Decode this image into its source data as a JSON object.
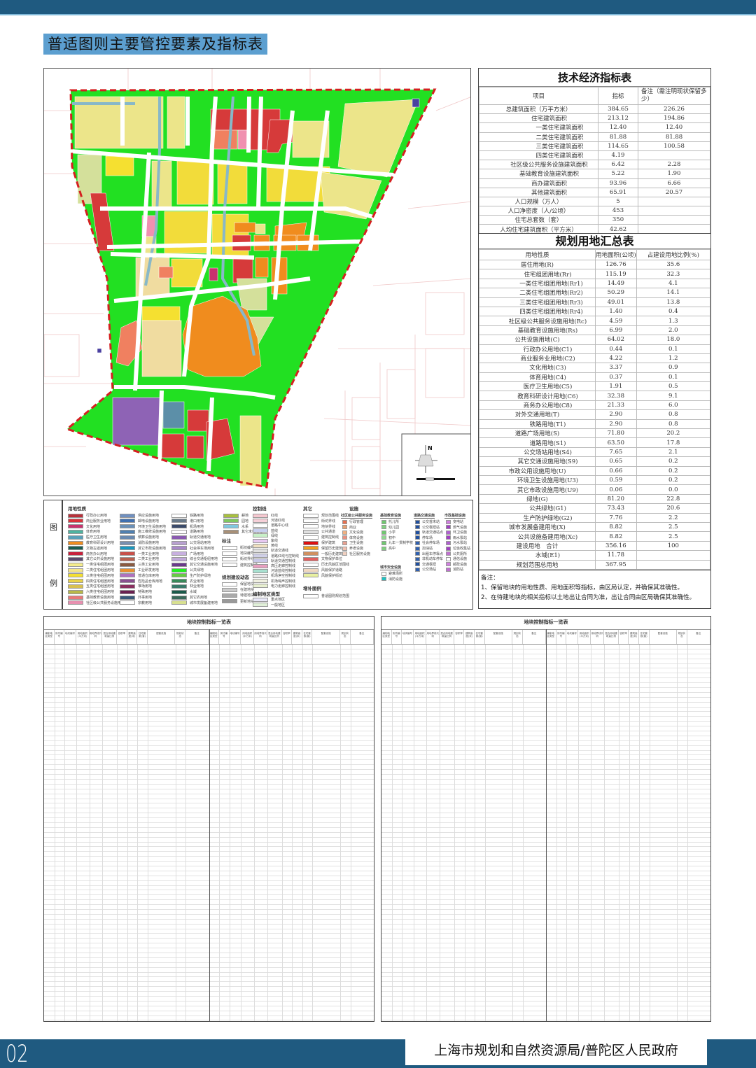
{
  "page_title": "普适图则主要管控要素及指标表",
  "page_number": "02",
  "organization": "上海市规划和自然资源局/普陀区人民政府",
  "tech_table": {
    "title": "技术经济指标表",
    "headers": [
      "项目",
      "指标",
      "备注（需注明现状保留多少）"
    ],
    "rows": [
      {
        "item": "总建筑面积（万平方米）",
        "value": "384.65",
        "note": "226.26",
        "level": 0
      },
      {
        "item": "住宅建筑面积",
        "value": "213.12",
        "note": "194.86",
        "level": 1
      },
      {
        "item": "一类住宅建筑面积",
        "value": "12.40",
        "note": "12.40",
        "level": 2
      },
      {
        "item": "二类住宅建筑面积",
        "value": "81.88",
        "note": "81.88",
        "level": 2
      },
      {
        "item": "三类住宅建筑面积",
        "value": "114.65",
        "note": "100.58",
        "level": 2
      },
      {
        "item": "四类住宅建筑面积",
        "value": "4.19",
        "note": "",
        "level": 2
      },
      {
        "item": "社区级公共服务设施建筑面积",
        "value": "6.42",
        "note": "2.28",
        "level": 1
      },
      {
        "item": "基础教育设施建筑面积",
        "value": "5.22",
        "note": "1.90",
        "level": 1
      },
      {
        "item": "商办建筑面积",
        "value": "93.96",
        "note": "6.66",
        "level": 1
      },
      {
        "item": "其他建筑面积",
        "value": "65.91",
        "note": "20.57",
        "level": 1
      },
      {
        "item": "人口规模（万人）",
        "value": "5",
        "note": "",
        "level": 0
      },
      {
        "item": "人口净密度（人/公顷）",
        "value": "453",
        "note": "",
        "level": 0
      },
      {
        "item": "住宅总套数（套）",
        "value": "350",
        "note": "",
        "level": 0
      },
      {
        "item": "人均住宅建筑面积（平方米）",
        "value": "42.62",
        "note": "",
        "level": 0
      }
    ]
  },
  "land_table": {
    "title": "规划用地汇总表",
    "headers": [
      "用地性质",
      "用地面积(公顷)",
      "占建设用地比例(%)"
    ],
    "rows": [
      {
        "item": "居住用地(R)",
        "area": "126.76",
        "ratio": "35.6",
        "level": 0
      },
      {
        "item": "住宅组团用地(Rr)",
        "area": "115.19",
        "ratio": "32.3",
        "level": 1
      },
      {
        "item": "一类住宅组团用地(Rr1)",
        "area": "14.49",
        "ratio": "4.1",
        "level": 2
      },
      {
        "item": "二类住宅组团用地(Rr2)",
        "area": "50.29",
        "ratio": "14.1",
        "level": 2
      },
      {
        "item": "三类住宅组团用地(Rr3)",
        "area": "49.01",
        "ratio": "13.8",
        "level": 2
      },
      {
        "item": "四类住宅组团用地(Rr4)",
        "area": "1.40",
        "ratio": "0.4",
        "level": 2
      },
      {
        "item": "社区级公共服务设施用地(Rc)",
        "area": "4.59",
        "ratio": "1.3",
        "level": 1
      },
      {
        "item": "基础教育设施用地(Rs)",
        "area": "6.99",
        "ratio": "2.0",
        "level": 1
      },
      {
        "item": "公共设施用地(C)",
        "area": "64.02",
        "ratio": "18.0",
        "level": 0
      },
      {
        "item": "行政办公用地(C1)",
        "area": "0.44",
        "ratio": "0.1",
        "level": 1
      },
      {
        "item": "商业服务业用地(C2)",
        "area": "4.22",
        "ratio": "1.2",
        "level": 1
      },
      {
        "item": "文化用地(C3)",
        "area": "3.37",
        "ratio": "0.9",
        "level": 1
      },
      {
        "item": "体育用地(C4)",
        "area": "0.37",
        "ratio": "0.1",
        "level": 1
      },
      {
        "item": "医疗卫生用地(C5)",
        "area": "1.91",
        "ratio": "0.5",
        "level": 1
      },
      {
        "item": "教育科研设计用地(C6)",
        "area": "32.38",
        "ratio": "9.1",
        "level": 1
      },
      {
        "item": "商务办公用地(C8)",
        "area": "21.33",
        "ratio": "6.0",
        "level": 1
      },
      {
        "item": "对外交通用地(T)",
        "area": "2.90",
        "ratio": "0.8",
        "level": 0
      },
      {
        "item": "铁路用地(T1)",
        "area": "2.90",
        "ratio": "0.8",
        "level": 1
      },
      {
        "item": "道路广场用地(S)",
        "area": "71.80",
        "ratio": "20.2",
        "level": 0
      },
      {
        "item": "道路用地(S1)",
        "area": "63.50",
        "ratio": "17.8",
        "level": 1
      },
      {
        "item": "公交场站用地(S4)",
        "area": "7.65",
        "ratio": "2.1",
        "level": 1
      },
      {
        "item": "其它交通设施用地(S9)",
        "area": "0.65",
        "ratio": "0.2",
        "level": 1
      },
      {
        "item": "市政公用设施用地(U)",
        "area": "0.66",
        "ratio": "0.2",
        "level": 0
      },
      {
        "item": "环境卫生设施用地(U3)",
        "area": "0.59",
        "ratio": "0.2",
        "level": 1
      },
      {
        "item": "其它市政设施用地(U9)",
        "area": "0.06",
        "ratio": "0.0",
        "level": 1
      },
      {
        "item": "绿地(G)",
        "area": "81.20",
        "ratio": "22.8",
        "level": 0
      },
      {
        "item": "公共绿地(G1)",
        "area": "73.43",
        "ratio": "20.6",
        "level": 1
      },
      {
        "item": "生产防护绿地(G2)",
        "area": "7.76",
        "ratio": "2.2",
        "level": 1
      },
      {
        "item": "城市发展备建用地(X)",
        "area": "8.82",
        "ratio": "2.5",
        "level": 0
      },
      {
        "item": "公共设施备建用地(Xc)",
        "area": "8.82",
        "ratio": "2.5",
        "level": 1
      },
      {
        "item": "建设用地　合计",
        "area": "356.16",
        "ratio": "100",
        "level": 0
      },
      {
        "item": "水域(E1)",
        "area": "11.78",
        "ratio": "",
        "level": 1
      },
      {
        "item": "规划范围总用地",
        "area": "367.95",
        "ratio": "",
        "level": 0
      }
    ]
  },
  "notes": {
    "heading": "备注：",
    "items": [
      "1、保留地块的用地性质、用地面积等指标，由区局认定，并确保其准确性。",
      "2、在待建地块的相关指标以土地出让合同为准，出让合同由区局确保其准确性。"
    ]
  },
  "legend": {
    "side_label": [
      "图",
      "例"
    ],
    "landuse_heading": "用地性质",
    "landuse_columns": [
      [
        [
          "行政办公用地",
          "#b8313a"
        ],
        [
          "商业服务业用地",
          "#d9323a"
        ],
        [
          "文化用地",
          "#c8326e"
        ],
        [
          "体育用地",
          "#4fb3a0"
        ],
        [
          "医疗卫生用地",
          "#5aa0b8"
        ],
        [
          "教育科研设计用地",
          "#f08c1e"
        ],
        [
          "文物古迹用地",
          "#1a5c4f"
        ],
        [
          "商务办公用地",
          "#c8203c"
        ],
        [
          "其它公共设施用地",
          "#5a4a6e"
        ],
        [
          "一类住宅组团用地",
          "#f5ec8c"
        ],
        [
          "二类住宅组团用地",
          "#f5e68a"
        ],
        [
          "三类住宅组团用地",
          "#f5e030"
        ],
        [
          "四类住宅组团用地",
          "#e8d24a"
        ],
        [
          "五类住宅组团用地",
          "#d8c050"
        ],
        [
          "六类住宅组团用地",
          "#b8b848"
        ],
        [
          "基础教育设施用地",
          "#e87878"
        ],
        [
          "社区级公共服务设施用地",
          "#e890b0"
        ]
      ],
      [
        [
          "供应设施用地",
          "#7090c0"
        ],
        [
          "邮电设施用地",
          "#4070b0"
        ],
        [
          "环境卫生设施用地",
          "#6a90b8"
        ],
        [
          "施工维修设施用地",
          "#5080b0"
        ],
        [
          "殡葬设施用地",
          "#6a8ab0"
        ],
        [
          "消防设施用地",
          "#7890b0"
        ],
        [
          "其它市政设施用地",
          "#1a98c0"
        ],
        [
          "一类工业用地",
          "#c8504a"
        ],
        [
          "二类工业用地",
          "#b86050"
        ],
        [
          "三类工业用地",
          "#8a5a40"
        ],
        [
          "工业研发用地",
          "#e89030"
        ],
        [
          "普通仓库用地",
          "#b070c0"
        ],
        [
          "危险品仓库用地",
          "#8a5090"
        ],
        [
          "堆场用地",
          "#8a3060"
        ],
        [
          "特殊用地",
          "#6a2050"
        ],
        [
          "外事用地",
          "#3a5a7a"
        ],
        [
          "宗教用地",
          "#ffffff"
        ]
      ],
      [
        [
          "铁路用地",
          "#ffffff"
        ],
        [
          "港口用地",
          "#6a7a8a"
        ],
        [
          "机场用地",
          "#3a4a6a"
        ],
        [
          "道路用地",
          "#ffffff"
        ],
        [
          "轨道交通用地",
          "#8a5ab0"
        ],
        [
          "公交场站用地",
          "#b8a0d0"
        ],
        [
          "社会停车场用地",
          "#a888c8"
        ],
        [
          "广场用地",
          "#c8b0e0"
        ],
        [
          "综合交通枢纽用地",
          "#c0a8d8"
        ],
        [
          "其它交通设施用地",
          "#6a3a8a"
        ],
        [
          "公共绿地",
          "#22ee22"
        ],
        [
          "生产防护绿地",
          "#66cc44"
        ],
        [
          "农业用地",
          "#3a8a5a"
        ],
        [
          "林业用地",
          "#3a7a6a"
        ],
        [
          "水域",
          "#1a5a4a"
        ],
        [
          "其它农用地",
          "#3a6a5a"
        ],
        [
          "城市发展备建用地",
          "#d8e090"
        ]
      ],
      [
        [
          "耕地",
          "#a8c040"
        ],
        [
          "园地",
          "#80c860"
        ],
        [
          "水系",
          "#80c8e0"
        ],
        [
          "其它未利用地",
          "#a89078"
        ]
      ]
    ],
    "annotation_heading": "标注",
    "annotation_items": [
      "街坊编号",
      "地块编号",
      "街坊界线",
      "建筑控制线"
    ],
    "dynamic_heading": "规划建设动态",
    "dynamic_items": [
      "保留地块",
      "在建地块",
      "待建地块",
      "更新地块"
    ],
    "control_heading": "控制线",
    "control_items": [
      [
        "红线",
        "#f6c8d0"
      ],
      [
        "河道红线",
        "#f6d0d8"
      ],
      [
        "道路中心线",
        "#ffffff"
      ],
      [
        "蓝线",
        "#c8d0f0"
      ],
      [
        "绿线",
        "#c8f0c8"
      ],
      [
        "紫线",
        "#e8c8f0"
      ],
      [
        "黄线",
        "#f0e0c0"
      ],
      [
        "轨道交通线",
        "#e0e0e0"
      ],
      [
        "道路红线与控制线",
        "#d0d0e8"
      ],
      [
        "轨道交通控制线",
        "#c8c8e8"
      ],
      [
        "高压走廊控制线",
        "#e8a0c0"
      ],
      [
        "河道蓝线控制线",
        "#a8e0d0"
      ],
      [
        "机场净空控制线",
        "#e8e8e8"
      ],
      [
        "机场噪声控制线",
        "#f0f0e0"
      ],
      [
        "电力走廊控制线",
        "#e8f0d0"
      ]
    ],
    "area_type_heading": "编制地区类型",
    "area_type_items": [
      [
        "重点地区",
        "#e8e8f8"
      ],
      [
        "一般地区",
        "#e0f0d8"
      ]
    ],
    "other_heading": "其它",
    "other_items": [
      [
        "规划范围线",
        "#ffffff"
      ],
      [
        "街坊界线",
        "#ffffff"
      ],
      [
        "地块界线",
        "#ffffff"
      ],
      [
        "公共通道",
        "#e0e0e0"
      ],
      [
        "建筑控制线",
        "#ffffff"
      ],
      [
        "保护建筑",
        "#dd1111"
      ],
      [
        "保留历史建筑",
        "#f0a020"
      ],
      [
        "一般历史建筑",
        "#d09060"
      ],
      [
        "文物保护单位",
        "#e06060"
      ],
      [
        "历史风貌区范围线",
        "#ffffff"
      ],
      [
        "风貌保护道路",
        "#f0d8c0"
      ],
      [
        "风貌保护街坊",
        "#e8f0a0"
      ]
    ],
    "supplement_heading": "增补图例",
    "supplement_items": [
      [
        "普适图则规划范围",
        "#ffffff"
      ]
    ],
    "facility_heading": "设施",
    "facility_groups": [
      {
        "title": "社区级公共服务设施",
        "items": [
          [
            "行政管理",
            "#e87050"
          ],
          [
            "商业",
            "#e8a070"
          ],
          [
            "文化设施",
            "#f0b080"
          ],
          [
            "体育设施",
            "#e89080"
          ],
          [
            "卫生设施",
            "#e8a090"
          ],
          [
            "养老设施",
            "#f0c0b0"
          ],
          [
            "社区服务设施",
            "#f0d0c0"
          ]
        ]
      },
      {
        "title": "基础教育设施",
        "items": [
          [
            "托儿所",
            "#70c870"
          ],
          [
            "幼儿园",
            "#80d080"
          ],
          [
            "小学",
            "#70c870"
          ],
          [
            "初中",
            "#90d890"
          ],
          [
            "九年一贯制学校",
            "#70c870"
          ],
          [
            "高中",
            "#80d080"
          ]
        ]
      },
      {
        "title": "城市安全设施",
        "items": [
          [
            "避难场所",
            "#ffffff"
          ],
          [
            "消防设施",
            "#20c0c0"
          ]
        ]
      },
      {
        "title": "道路交通设施",
        "items": [
          [
            "公交首末站",
            "#2050a0"
          ],
          [
            "公交枢纽站",
            "#2050a0"
          ],
          [
            "轨道交通站点",
            "#2050a0"
          ],
          [
            "停车场",
            "#2050a0"
          ],
          [
            "社会停车场",
            "#3060b0"
          ],
          [
            "加油站",
            "#3060b0"
          ],
          [
            "出租车停靠点",
            "#3060b0"
          ],
          [
            "非机动车停车",
            "#3060b0"
          ],
          [
            "交通枢纽",
            "#2050a0"
          ],
          [
            "公交场站",
            "#3060b0"
          ]
        ]
      },
      {
        "title": "市政基础设施",
        "items": [
          [
            "变电站",
            "#d080e0"
          ],
          [
            "燃气设施",
            "#a040c0"
          ],
          [
            "环卫设施",
            "#b060d0"
          ],
          [
            "雨水泵站",
            "#a040c0"
          ],
          [
            "污水泵站",
            "#b060d0"
          ],
          [
            "垃圾收集站",
            "#a040c0"
          ],
          [
            "公共厕所",
            "#c070d0"
          ],
          [
            "通信设施",
            "#ffffff"
          ],
          [
            "邮政设施",
            "#d080e0"
          ],
          [
            "消防站",
            "#c070d0"
          ]
        ]
      }
    ]
  },
  "block_tables": [
    {
      "title": "地块控制指标一览表",
      "headers": [
        "编制地区类型",
        "街坊编号",
        "地块编号",
        "用地面积(平方米)",
        "用地界线代码",
        "混合用地建筑量比例",
        "容积率",
        "建筑高度(米)",
        "住宅套数(套)",
        "配套设施",
        "规划状态",
        "备注"
      ]
    },
    {
      "title": "地块控制指标一览表",
      "headers": [
        "编制地区类型",
        "街坊编号",
        "地块编号",
        "用地面积(平方米)",
        "用地界线代码",
        "混合用地建筑量比例",
        "容积率",
        "建筑高度(米)",
        "住宅套数(套)",
        "配套设施",
        "规划状态",
        "备注"
      ]
    }
  ],
  "map": {
    "north_label": "N",
    "landuse_colors": {
      "green": "#22e022",
      "residential_pale": "#ece58a",
      "residential": "#f2dc3a",
      "commercial": "#d63a3a",
      "education": "#f08c1e",
      "purple": "#8e63b5",
      "water": "#88b8c8",
      "boundary": "#d42020"
    }
  }
}
